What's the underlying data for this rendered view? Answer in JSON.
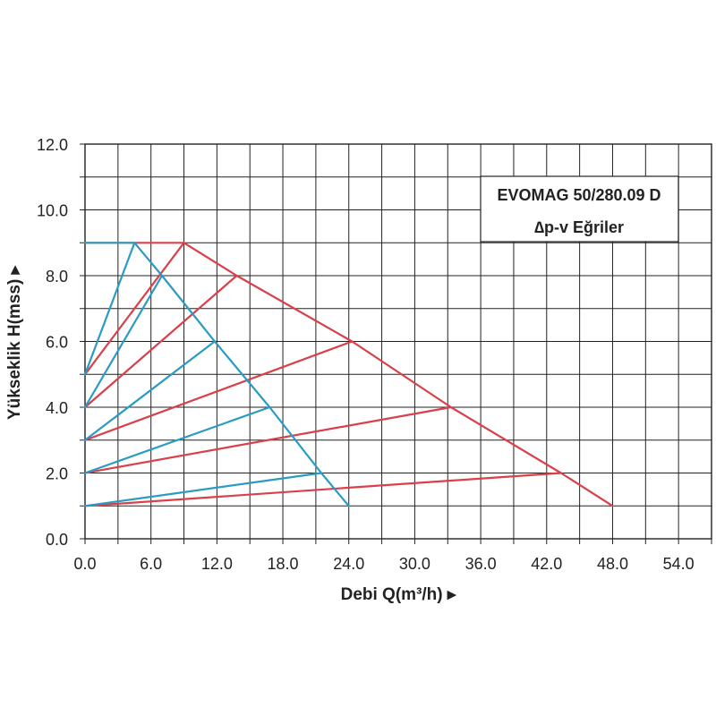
{
  "chart_data": {
    "type": "line",
    "title": "EVOMAG 50/280.09 D",
    "subtitle": "∆p-v Eğriler",
    "xlabel": "Debi Q(m³/h) ▸",
    "ylabel": "Yükseklik H(mss) ▸",
    "xlim": [
      0,
      57
    ],
    "ylim": [
      0,
      12
    ],
    "x_ticks": [
      "0.0",
      "6.0",
      "12.0",
      "18.0",
      "24.0",
      "30.0",
      "36.0",
      "42.0",
      "48.0",
      "54.0"
    ],
    "y_ticks": [
      "0.0",
      "2.0",
      "4.0",
      "6.0",
      "8.0",
      "10.0",
      "12.0"
    ],
    "grid": true,
    "colors": {
      "red": "#d9404a",
      "blue": "#2a9bc4",
      "grid": "#222222"
    },
    "series": [
      {
        "color": "red",
        "x": [
          0,
          9
        ],
        "y": [
          5,
          9
        ]
      },
      {
        "color": "red",
        "x": [
          0,
          13.8
        ],
        "y": [
          4,
          8
        ]
      },
      {
        "color": "red",
        "x": [
          0,
          24.3
        ],
        "y": [
          3,
          6
        ]
      },
      {
        "color": "red",
        "x": [
          0,
          33.3
        ],
        "y": [
          2,
          4
        ]
      },
      {
        "color": "red",
        "x": [
          0,
          43.3
        ],
        "y": [
          1,
          2
        ]
      },
      {
        "color": "red",
        "x": [
          0,
          9,
          13.8,
          24.3,
          33.3,
          43.3,
          48
        ],
        "y": [
          9,
          9,
          8,
          6,
          4,
          2,
          1
        ]
      },
      {
        "color": "blue",
        "x": [
          0,
          4.5
        ],
        "y": [
          5,
          9
        ]
      },
      {
        "color": "blue",
        "x": [
          0,
          7
        ],
        "y": [
          4,
          8
        ]
      },
      {
        "color": "blue",
        "x": [
          0,
          11.8
        ],
        "y": [
          3,
          6
        ]
      },
      {
        "color": "blue",
        "x": [
          0,
          16.8
        ],
        "y": [
          2,
          4
        ]
      },
      {
        "color": "blue",
        "x": [
          0,
          21.5
        ],
        "y": [
          1,
          2
        ]
      },
      {
        "color": "blue",
        "x": [
          0,
          4.5,
          7,
          11.8,
          16.8,
          21.5,
          24
        ],
        "y": [
          9,
          9,
          8,
          6,
          4,
          2,
          1
        ]
      }
    ]
  }
}
